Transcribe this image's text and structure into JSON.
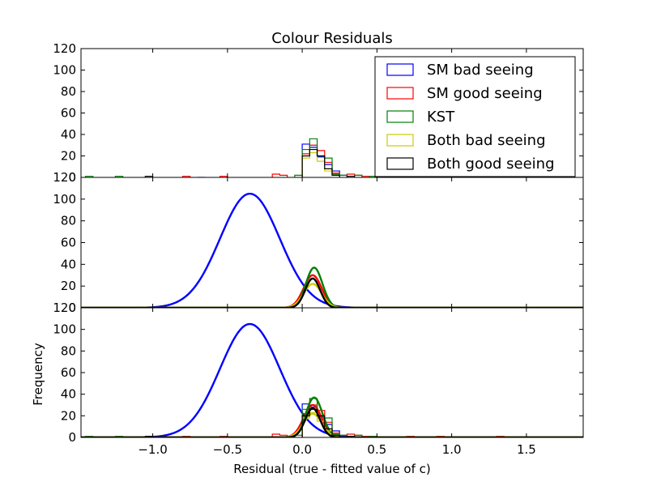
{
  "chart_data": {
    "type": "histogram",
    "title": "Colour Residuals",
    "xlabel": "Residual (true - fitted value of c)",
    "ylabel": "Frequency",
    "xlim": [
      -1.48,
      1.88
    ],
    "ylim": [
      0,
      120
    ],
    "x_ticks": [
      -1.0,
      -0.5,
      0.0,
      0.5,
      1.0,
      1.5
    ],
    "x_tick_labels": [
      "−1.0",
      "−0.5",
      "0.0",
      "0.5",
      "1.0",
      "1.5"
    ],
    "y_ticks": [
      0,
      20,
      40,
      60,
      80,
      100,
      120
    ],
    "y_tick_labels": [
      "0",
      "20",
      "40",
      "60",
      "80",
      "100",
      "120"
    ],
    "legend_position": "top-right",
    "series": [
      {
        "name": "SM bad seeing",
        "color": "#0000ff",
        "bin_width": 0.05,
        "hist": [
          [
            -0.7,
            0
          ],
          [
            0.0,
            31
          ],
          [
            0.05,
            28
          ],
          [
            0.1,
            19
          ],
          [
            0.15,
            12
          ],
          [
            0.2,
            6
          ],
          [
            0.25,
            2
          ]
        ],
        "gauss": {
          "mu": -0.35,
          "sigma": 0.2,
          "amp": 105
        }
      },
      {
        "name": "SM good seeing",
        "color": "#ff0000",
        "bin_width": 0.05,
        "hist": [
          [
            -0.8,
            1
          ],
          [
            -0.55,
            1
          ],
          [
            -0.2,
            3
          ],
          [
            -0.15,
            2
          ],
          [
            0.0,
            22
          ],
          [
            0.05,
            30
          ],
          [
            0.1,
            25
          ],
          [
            0.15,
            14
          ],
          [
            0.2,
            4
          ],
          [
            0.3,
            3
          ],
          [
            0.35,
            2
          ],
          [
            0.4,
            1
          ],
          [
            0.7,
            1
          ],
          [
            0.9,
            1
          ],
          [
            1.3,
            1
          ]
        ],
        "gauss": {
          "mu": 0.07,
          "sigma": 0.06,
          "amp": 30
        }
      },
      {
        "name": "KST",
        "color": "#008000",
        "bin_width": 0.05,
        "hist": [
          [
            -1.45,
            1
          ],
          [
            -1.25,
            1
          ],
          [
            -0.05,
            2
          ],
          [
            0.0,
            26
          ],
          [
            0.05,
            36
          ],
          [
            0.1,
            20
          ],
          [
            0.15,
            18
          ],
          [
            0.2,
            3
          ],
          [
            0.25,
            2
          ],
          [
            0.35,
            2
          ],
          [
            0.45,
            1
          ]
        ],
        "gauss": {
          "mu": 0.08,
          "sigma": 0.055,
          "amp": 37
        }
      },
      {
        "name": "Both bad seeing",
        "color": "#cccc00",
        "bin_width": 0.05,
        "hist": [
          [
            0.0,
            18
          ],
          [
            0.05,
            23
          ],
          [
            0.1,
            15
          ],
          [
            0.15,
            6
          ],
          [
            0.2,
            2
          ]
        ],
        "gauss": {
          "mu": 0.07,
          "sigma": 0.06,
          "amp": 22
        }
      },
      {
        "name": "Both good seeing",
        "color": "#000000",
        "bin_width": 0.05,
        "hist": [
          [
            -1.05,
            1
          ],
          [
            0.0,
            20
          ],
          [
            0.05,
            26
          ],
          [
            0.1,
            20
          ],
          [
            0.15,
            8
          ],
          [
            0.2,
            2
          ],
          [
            0.3,
            1
          ]
        ],
        "gauss": {
          "mu": 0.07,
          "sigma": 0.05,
          "amp": 27
        }
      }
    ],
    "panels": [
      {
        "id": "top",
        "shows": [
          "hist"
        ]
      },
      {
        "id": "middle",
        "shows": [
          "gauss"
        ]
      },
      {
        "id": "bottom",
        "shows": [
          "hist",
          "gauss"
        ]
      }
    ]
  }
}
